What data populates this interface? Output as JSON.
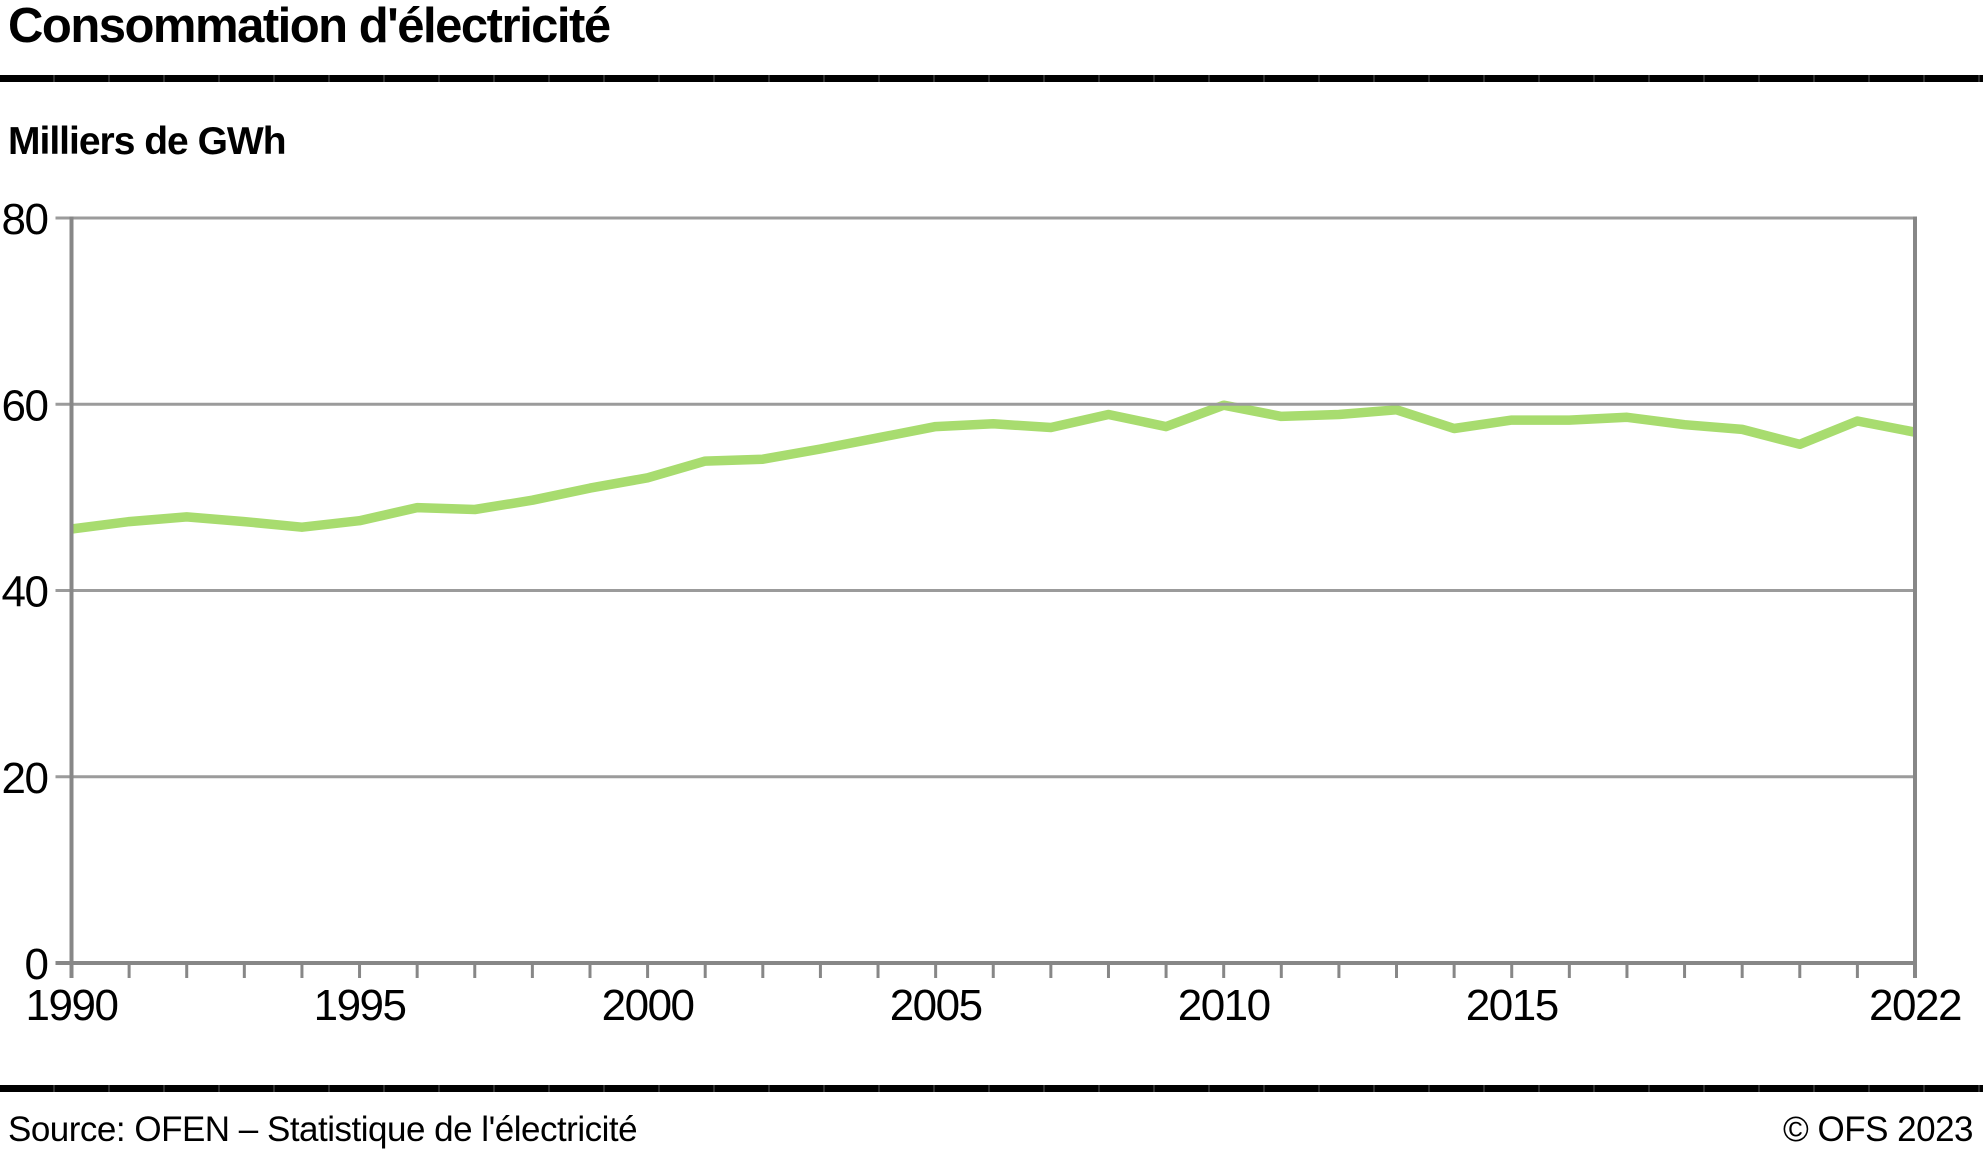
{
  "title": "Consommation d'électricité",
  "subtitle": "Milliers de GWh",
  "footer": {
    "source": "Source: OFEN – Statistique de l'électricité",
    "copyright": "© OFS 2023"
  },
  "colors": {
    "line": "#A8DC6F",
    "grid": "#9B9B9B",
    "axis": "#878787",
    "text": "#000000",
    "rule": "#000000"
  },
  "chart_data": {
    "type": "line",
    "title": "Consommation d'électricité",
    "ylabel": "Milliers de GWh",
    "xlabel": "",
    "ylim": [
      0,
      80
    ],
    "yticks": [
      0,
      20,
      40,
      60,
      80
    ],
    "xtick_labels": [
      1990,
      1995,
      2000,
      2005,
      2010,
      2015,
      2022
    ],
    "grid": "horizontal",
    "legend": "none",
    "x": [
      1990,
      1991,
      1992,
      1993,
      1994,
      1995,
      1996,
      1997,
      1998,
      1999,
      2000,
      2001,
      2002,
      2003,
      2004,
      2005,
      2006,
      2007,
      2008,
      2009,
      2010,
      2011,
      2012,
      2013,
      2014,
      2015,
      2016,
      2017,
      2018,
      2019,
      2020,
      2021,
      2022
    ],
    "series": [
      {
        "name": "Consommation d'électricité",
        "values": [
          46.6,
          47.4,
          47.9,
          47.4,
          46.8,
          47.5,
          48.9,
          48.7,
          49.7,
          51.0,
          52.1,
          53.9,
          54.1,
          55.2,
          56.4,
          57.6,
          57.9,
          57.5,
          58.9,
          57.6,
          59.9,
          58.7,
          58.9,
          59.4,
          57.4,
          58.3,
          58.3,
          58.6,
          57.8,
          57.3,
          55.7,
          58.2,
          57.0
        ]
      }
    ]
  }
}
